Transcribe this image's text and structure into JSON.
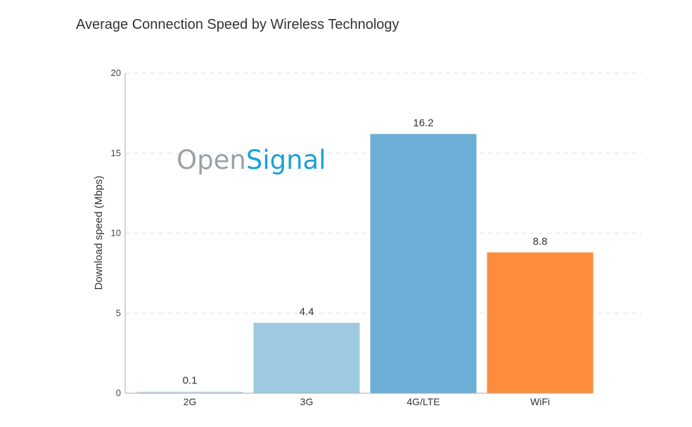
{
  "chart_data": {
    "type": "bar",
    "title": "Average Connection Speed by Wireless Technology",
    "xlabel": "",
    "ylabel": "Download speed (Mbps)",
    "categories": [
      "2G",
      "3G",
      "4G/LTE",
      "WiFi"
    ],
    "values": [
      0.1,
      4.4,
      16.2,
      8.8
    ],
    "data_labels": [
      "0.1",
      "4.4",
      "16.2",
      "8.8"
    ],
    "colors": [
      "#c6dbef",
      "#9ecae1",
      "#6baed6",
      "#fd8d3c"
    ],
    "ylim": [
      0,
      20
    ],
    "yticks": [
      0,
      5,
      10,
      15,
      20
    ],
    "grid": true,
    "watermark": {
      "part1": "Open",
      "part2": "Signal",
      "color1": "#9aa2a6",
      "color2": "#1ba1d8"
    }
  }
}
